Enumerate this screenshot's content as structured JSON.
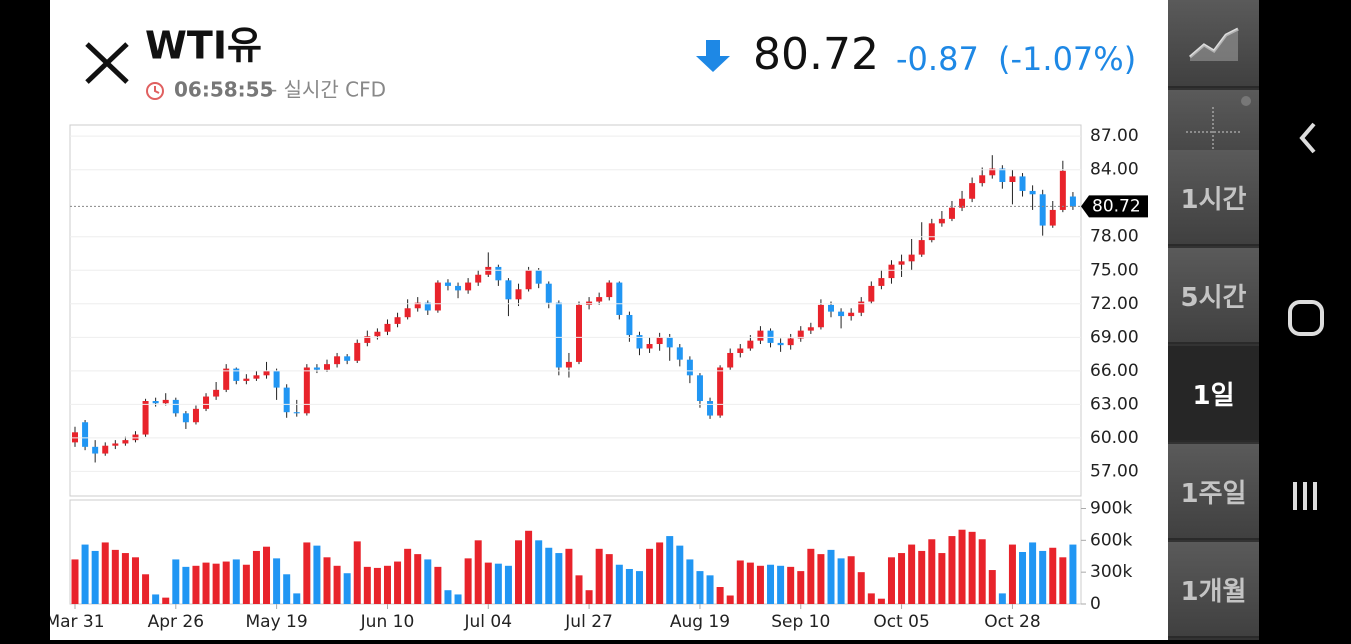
{
  "header": {
    "title": "WTI유",
    "time": "06:58:55",
    "source": "- 실시간 CFD",
    "price": "80.72",
    "change": "-0.87",
    "change_pct": "(-1.07%)"
  },
  "sidebar": {
    "intervals": [
      "1시간",
      "5시간",
      "1일",
      "1주일",
      "1개월"
    ],
    "selected": 2
  },
  "chart_data": {
    "type": "candlestick",
    "up_color": "#e8232b",
    "down_color": "#2196f3",
    "last": 80.72,
    "ylim": [
      54.8,
      88.0
    ],
    "yticks": [
      {
        "value": 57,
        "label": "57.00"
      },
      {
        "value": 60,
        "label": "60.00"
      },
      {
        "value": 63,
        "label": "63.00"
      },
      {
        "value": 66,
        "label": "66.00"
      },
      {
        "value": 69,
        "label": "69.00"
      },
      {
        "value": 72,
        "label": "72.00"
      },
      {
        "value": 75,
        "label": "75.00"
      },
      {
        "value": 78,
        "label": "78.00"
      },
      {
        "value": 84,
        "label": "84.00"
      },
      {
        "value": 87,
        "label": "87.00"
      }
    ],
    "vlim": [
      0,
      980000
    ],
    "vticks": [
      {
        "value": 0,
        "label": "0"
      },
      {
        "value": 300000,
        "label": "300k"
      },
      {
        "value": 600000,
        "label": "600k"
      },
      {
        "value": 900000,
        "label": "900k"
      }
    ],
    "xticks": [
      {
        "value": 0,
        "label": "Mar 31"
      },
      {
        "value": 10,
        "label": "Apr 26"
      },
      {
        "value": 20,
        "label": "May 19"
      },
      {
        "value": 31,
        "label": "Jun 10"
      },
      {
        "value": 41,
        "label": "Jul 04"
      },
      {
        "value": 51,
        "label": "Jul 27"
      },
      {
        "value": 62,
        "label": "Aug 19"
      },
      {
        "value": 72,
        "label": "Sep 10"
      },
      {
        "value": 82,
        "label": "Oct 05"
      },
      {
        "value": 93,
        "label": "Oct 28"
      }
    ],
    "ohlc": [
      [
        59.6,
        61.0,
        59.2,
        60.5
      ],
      [
        61.4,
        61.6,
        58.9,
        59.2
      ],
      [
        59.2,
        59.8,
        57.8,
        58.6
      ],
      [
        58.6,
        59.6,
        58.4,
        59.3
      ],
      [
        59.3,
        59.8,
        59.0,
        59.5
      ],
      [
        59.5,
        60.1,
        59.3,
        59.8
      ],
      [
        59.8,
        60.6,
        59.6,
        60.3
      ],
      [
        60.3,
        63.5,
        60.1,
        63.3
      ],
      [
        63.3,
        63.6,
        62.8,
        63.1
      ],
      [
        63.1,
        64.0,
        62.9,
        63.4
      ],
      [
        63.4,
        63.6,
        61.9,
        62.2
      ],
      [
        62.2,
        62.4,
        60.8,
        61.4
      ],
      [
        61.4,
        62.9,
        61.2,
        62.6
      ],
      [
        62.6,
        64.0,
        62.4,
        63.7
      ],
      [
        63.7,
        65.0,
        63.4,
        64.3
      ],
      [
        64.3,
        66.6,
        64.1,
        66.2
      ],
      [
        66.2,
        66.3,
        64.8,
        65.1
      ],
      [
        65.1,
        65.7,
        64.8,
        65.3
      ],
      [
        65.3,
        66.0,
        65.1,
        65.6
      ],
      [
        65.6,
        66.8,
        65.3,
        66.0
      ],
      [
        66.0,
        66.2,
        63.4,
        64.5
      ],
      [
        64.5,
        64.8,
        61.8,
        62.3
      ],
      [
        62.3,
        63.4,
        61.9,
        62.2
      ],
      [
        62.2,
        66.6,
        62.0,
        66.3
      ],
      [
        66.3,
        66.6,
        65.8,
        66.1
      ],
      [
        66.1,
        67.0,
        65.9,
        66.6
      ],
      [
        66.6,
        67.6,
        66.3,
        67.3
      ],
      [
        67.3,
        67.5,
        66.6,
        66.9
      ],
      [
        66.9,
        68.8,
        66.7,
        68.5
      ],
      [
        68.5,
        69.6,
        68.2,
        69.1
      ],
      [
        69.1,
        69.8,
        68.8,
        69.5
      ],
      [
        69.5,
        70.6,
        69.2,
        70.2
      ],
      [
        70.2,
        71.2,
        69.9,
        70.8
      ],
      [
        70.8,
        72.4,
        70.6,
        71.6
      ],
      [
        71.6,
        72.6,
        71.3,
        72.1
      ],
      [
        72.1,
        72.3,
        71.0,
        71.4
      ],
      [
        71.4,
        74.1,
        71.2,
        73.9
      ],
      [
        73.9,
        74.2,
        73.2,
        73.6
      ],
      [
        73.6,
        73.9,
        72.5,
        73.2
      ],
      [
        73.2,
        74.3,
        72.9,
        73.9
      ],
      [
        73.9,
        75.0,
        73.6,
        74.6
      ],
      [
        74.6,
        76.6,
        74.4,
        75.3
      ],
      [
        75.3,
        75.5,
        73.6,
        74.1
      ],
      [
        74.1,
        74.3,
        70.9,
        72.4
      ],
      [
        72.4,
        73.8,
        71.8,
        73.3
      ],
      [
        73.3,
        75.3,
        73.1,
        75.0
      ],
      [
        75.0,
        75.2,
        73.4,
        73.8
      ],
      [
        73.8,
        74.0,
        71.6,
        72.1
      ],
      [
        72.1,
        72.3,
        65.6,
        66.3
      ],
      [
        66.3,
        67.6,
        65.4,
        66.8
      ],
      [
        66.8,
        72.2,
        66.6,
        71.9
      ],
      [
        71.9,
        72.6,
        71.5,
        72.2
      ],
      [
        72.2,
        73.0,
        71.9,
        72.6
      ],
      [
        72.6,
        74.1,
        72.3,
        73.9
      ],
      [
        73.9,
        74.0,
        70.6,
        71.0
      ],
      [
        71.0,
        71.3,
        68.6,
        69.2
      ],
      [
        69.2,
        69.5,
        67.4,
        68.0
      ],
      [
        68.0,
        69.0,
        67.6,
        68.4
      ],
      [
        68.4,
        69.4,
        67.8,
        69.0
      ],
      [
        69.0,
        69.3,
        66.9,
        68.1
      ],
      [
        68.1,
        68.4,
        66.4,
        67.0
      ],
      [
        67.0,
        67.3,
        64.9,
        65.6
      ],
      [
        65.6,
        65.8,
        62.7,
        63.3
      ],
      [
        63.3,
        63.6,
        61.7,
        62.0
      ],
      [
        62.0,
        66.5,
        61.8,
        66.3
      ],
      [
        66.3,
        68.0,
        66.1,
        67.6
      ],
      [
        67.6,
        68.4,
        67.2,
        68.0
      ],
      [
        68.0,
        69.2,
        67.8,
        68.7
      ],
      [
        68.7,
        70.0,
        68.4,
        69.6
      ],
      [
        69.6,
        69.8,
        68.1,
        68.5
      ],
      [
        68.5,
        68.9,
        67.7,
        68.3
      ],
      [
        68.3,
        69.3,
        67.9,
        68.9
      ],
      [
        68.9,
        70.0,
        68.6,
        69.6
      ],
      [
        69.6,
        70.3,
        69.3,
        69.9
      ],
      [
        69.9,
        72.4,
        69.7,
        71.9
      ],
      [
        71.9,
        72.2,
        70.8,
        71.3
      ],
      [
        71.3,
        71.6,
        69.8,
        70.9
      ],
      [
        70.9,
        71.6,
        70.5,
        71.2
      ],
      [
        71.2,
        72.6,
        70.9,
        72.2
      ],
      [
        72.2,
        74.0,
        72.0,
        73.6
      ],
      [
        73.6,
        75.0,
        73.3,
        74.3
      ],
      [
        74.3,
        75.9,
        73.8,
        75.5
      ],
      [
        75.5,
        76.4,
        74.4,
        75.8
      ],
      [
        75.8,
        77.8,
        75.0,
        76.4
      ],
      [
        76.4,
        79.3,
        76.2,
        77.7
      ],
      [
        77.7,
        79.6,
        77.5,
        79.2
      ],
      [
        79.2,
        80.3,
        78.9,
        79.6
      ],
      [
        79.6,
        81.2,
        79.4,
        80.6
      ],
      [
        80.6,
        82.1,
        80.3,
        81.4
      ],
      [
        81.4,
        83.3,
        81.1,
        82.8
      ],
      [
        82.8,
        84.2,
        82.5,
        83.5
      ],
      [
        83.5,
        85.3,
        83.2,
        84.1
      ],
      [
        84.1,
        84.4,
        82.3,
        82.9
      ],
      [
        82.9,
        84.0,
        80.9,
        83.4
      ],
      [
        83.4,
        83.7,
        81.6,
        82.1
      ],
      [
        82.1,
        82.6,
        80.4,
        81.8
      ],
      [
        81.8,
        82.2,
        78.1,
        79.0
      ],
      [
        79.0,
        81.2,
        78.8,
        80.4
      ],
      [
        80.4,
        84.8,
        80.2,
        83.9
      ],
      [
        81.6,
        82.0,
        80.4,
        80.72
      ]
    ],
    "volume": [
      420000,
      560000,
      500000,
      580000,
      510000,
      480000,
      440000,
      280000,
      90000,
      60000,
      420000,
      350000,
      360000,
      390000,
      380000,
      400000,
      420000,
      370000,
      500000,
      540000,
      430000,
      280000,
      100000,
      580000,
      550000,
      440000,
      360000,
      290000,
      590000,
      350000,
      340000,
      360000,
      400000,
      520000,
      470000,
      420000,
      350000,
      130000,
      90000,
      430000,
      600000,
      390000,
      380000,
      360000,
      600000,
      690000,
      600000,
      530000,
      480000,
      520000,
      270000,
      130000,
      520000,
      470000,
      370000,
      330000,
      310000,
      520000,
      580000,
      640000,
      550000,
      420000,
      310000,
      270000,
      160000,
      80000,
      410000,
      390000,
      360000,
      370000,
      360000,
      350000,
      310000,
      520000,
      470000,
      510000,
      430000,
      450000,
      300000,
      100000,
      50000,
      440000,
      480000,
      560000,
      500000,
      610000,
      480000,
      640000,
      700000,
      680000,
      610000,
      320000,
      100000,
      560000,
      490000,
      580000,
      500000,
      530000,
      440000,
      560000
    ]
  }
}
